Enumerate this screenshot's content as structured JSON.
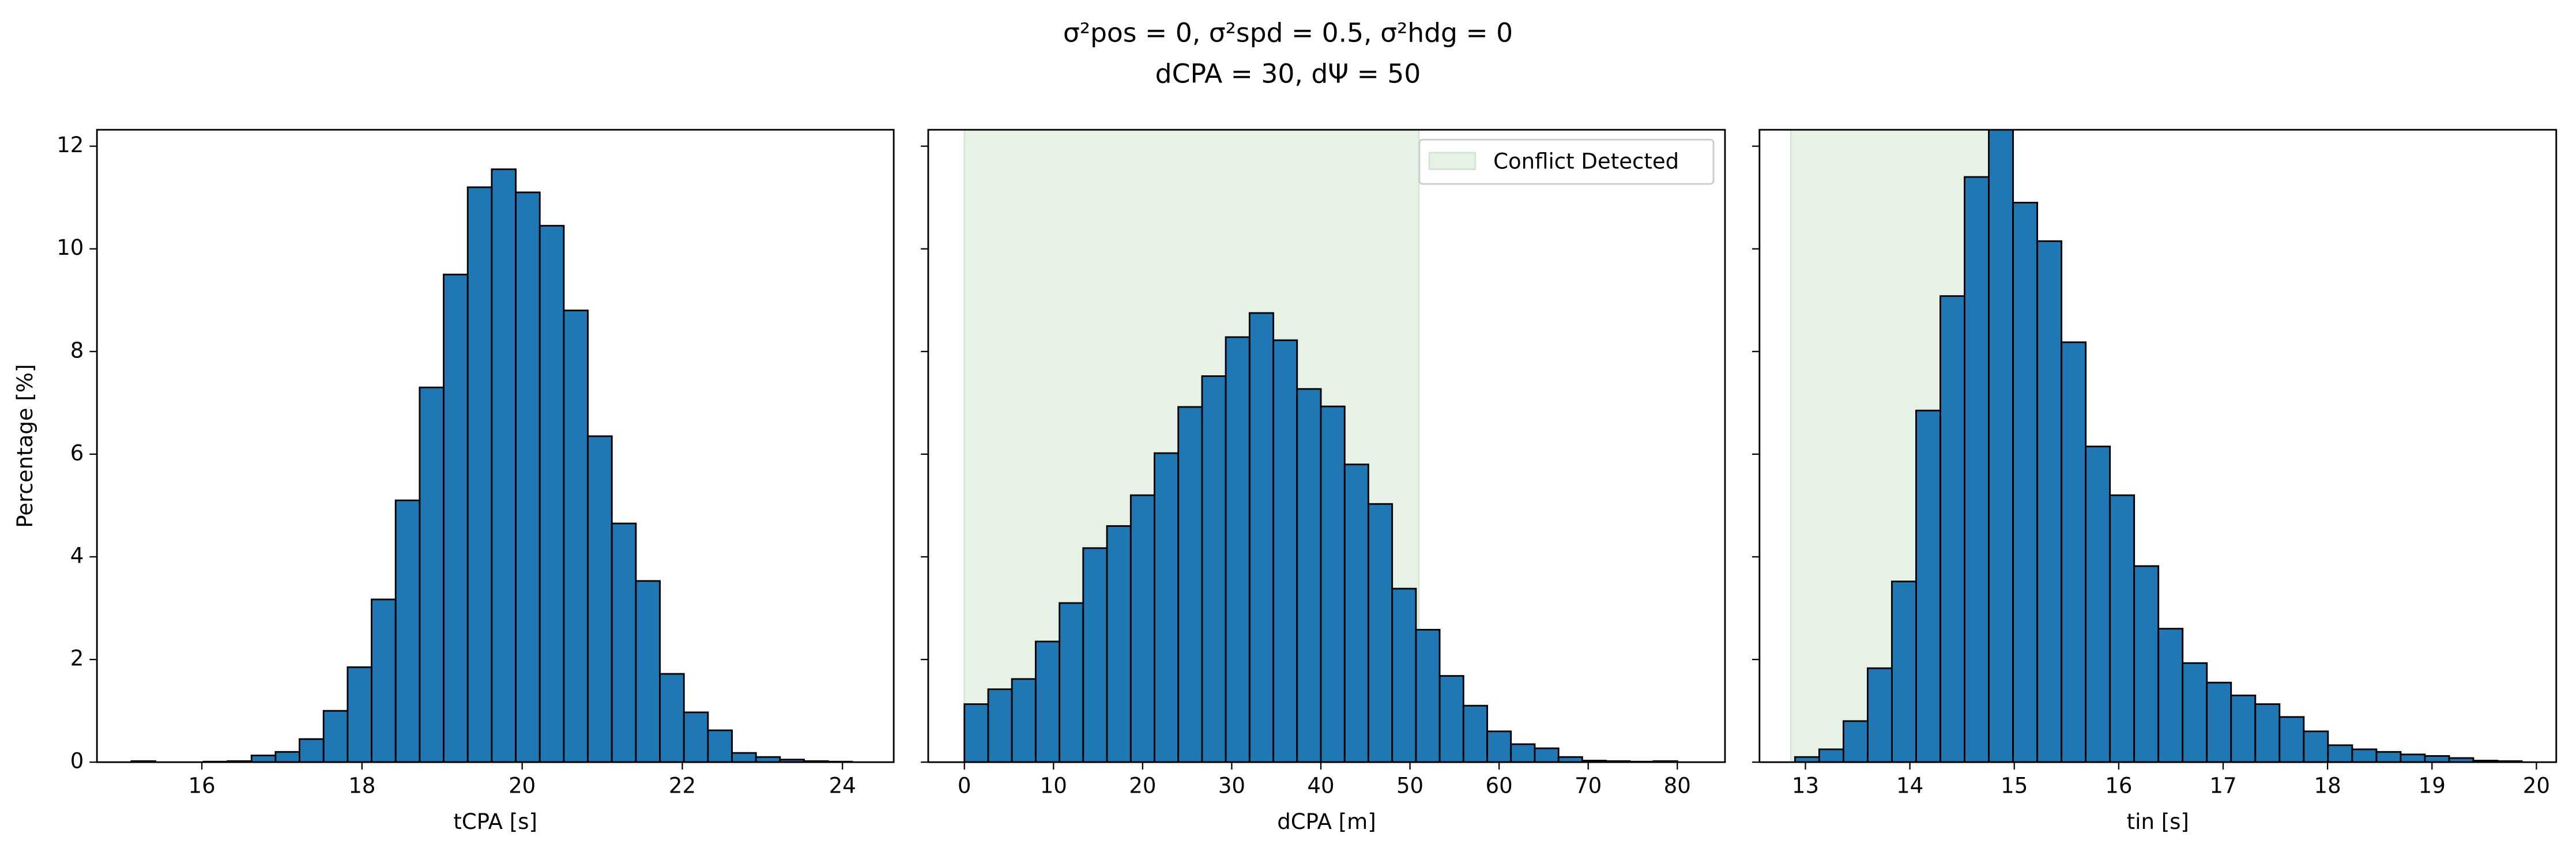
{
  "suptitle": [
    "σ²pos = 0, σ²spd = 0.5, σ²hdg = 0",
    "dCPA = 30, dΨ = 50"
  ],
  "chart_data": [
    {
      "type": "histogram",
      "xlabel": "tCPA [s]",
      "ylabel": "Percentage [%]",
      "color": "#1f77b4",
      "bins": [
        15.12,
        15.42,
        15.72,
        16.02,
        16.32,
        16.62,
        16.92,
        17.22,
        17.52,
        17.82,
        18.12,
        18.42,
        18.72,
        19.02,
        19.32,
        19.62,
        19.92,
        20.22,
        20.52,
        20.82,
        21.12,
        21.42,
        21.72,
        22.02,
        22.32,
        22.62,
        22.92,
        23.22,
        23.52,
        23.82,
        24.12
      ],
      "values": [
        0.02,
        0,
        0,
        0.01,
        0.02,
        0.13,
        0.2,
        0.45,
        1.0,
        1.85,
        3.17,
        5.1,
        7.3,
        9.5,
        11.2,
        11.55,
        11.1,
        10.45,
        8.8,
        6.35,
        4.65,
        3.53,
        1.72,
        0.97,
        0.62,
        0.18,
        0.1,
        0.05,
        0.02,
        0.01
      ],
      "xlim": [
        14.69,
        24.64
      ],
      "xticks": [
        16,
        18,
        20,
        22,
        24
      ],
      "ylim": [
        0,
        12.32
      ],
      "yticks": [
        0,
        2,
        4,
        6,
        8,
        10,
        12
      ],
      "show_yticklabels": true
    },
    {
      "type": "histogram",
      "xlabel": "dCPA [m]",
      "color": "#1f77b4",
      "bins": [
        0,
        2.67,
        5.33,
        8,
        10.67,
        13.33,
        16,
        18.67,
        21.33,
        24,
        26.67,
        29.33,
        32,
        34.67,
        37.33,
        40,
        42.67,
        45.33,
        48,
        50.67,
        53.33,
        56,
        58.67,
        61.33,
        64,
        66.67,
        69.33,
        72,
        74.67,
        77.33,
        80
      ],
      "values": [
        1.13,
        1.42,
        1.62,
        2.35,
        3.1,
        4.17,
        4.6,
        5.2,
        6.02,
        6.92,
        7.52,
        8.28,
        8.75,
        8.22,
        7.27,
        6.93,
        5.8,
        5.03,
        3.38,
        2.58,
        1.68,
        1.1,
        0.6,
        0.35,
        0.27,
        0.1,
        0.03,
        0.02,
        0.01,
        0.02
      ],
      "xlim": [
        -4.06,
        85.35
      ],
      "xticks": [
        0,
        10,
        20,
        30,
        40,
        50,
        60,
        70,
        80
      ],
      "ylim": [
        0,
        12.32
      ],
      "yticks": [
        0,
        2,
        4,
        6,
        8,
        10,
        12
      ],
      "show_yticklabels": false,
      "span": {
        "name": "Conflict Detected",
        "range": [
          0,
          51
        ],
        "color": "#e5f2e5"
      },
      "legend": "upper right"
    },
    {
      "type": "histogram",
      "xlabel": "tin [s]",
      "color": "#1f77b4",
      "bins": [
        12.9,
        13.132,
        13.364,
        13.596,
        13.828,
        14.06,
        14.292,
        14.524,
        14.756,
        14.988,
        15.22,
        15.452,
        15.684,
        15.916,
        16.148,
        16.38,
        16.612,
        16.844,
        17.076,
        17.308,
        17.54,
        17.772,
        18.004,
        18.236,
        18.468,
        18.7,
        18.932,
        19.164,
        19.396,
        19.628,
        19.86
      ],
      "values": [
        0.1,
        0.25,
        0.8,
        1.83,
        3.52,
        6.85,
        9.08,
        11.4,
        12.6,
        10.9,
        10.15,
        8.18,
        6.15,
        5.2,
        3.82,
        2.6,
        1.93,
        1.55,
        1.3,
        1.13,
        0.88,
        0.6,
        0.33,
        0.25,
        0.2,
        0.15,
        0.12,
        0.08,
        0.03,
        0.02
      ],
      "xlim": [
        12.56,
        20.19
      ],
      "xticks": [
        13,
        14,
        15,
        16,
        17,
        18,
        19,
        20
      ],
      "ylim": [
        0,
        12.32
      ],
      "yticks": [
        0,
        2,
        4,
        6,
        8,
        10,
        12
      ],
      "show_yticklabels": false,
      "span": {
        "range": [
          12.86,
          14.95
        ],
        "color": "#e5f2e5"
      }
    }
  ]
}
